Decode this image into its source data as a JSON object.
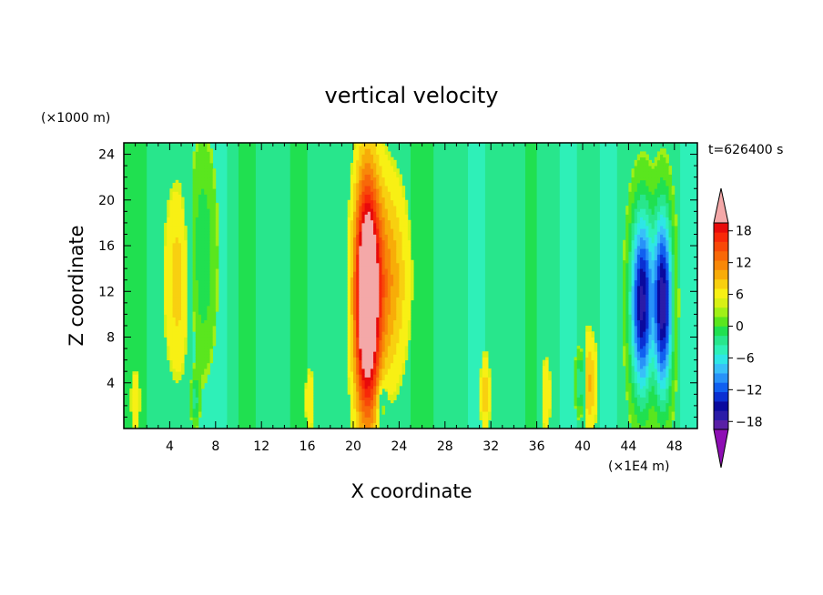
{
  "chart_data": {
    "type": "heatmap",
    "title": "vertical velocity",
    "xlabel": "X coordinate",
    "ylabel": "Z coordinate",
    "x_unit": "(×1E4 m)",
    "y_unit": "(×1000 m)",
    "time_label": "t=626400 s",
    "xlim": [
      0,
      50
    ],
    "ylim": [
      0,
      25
    ],
    "x_ticks": [
      4,
      8,
      12,
      16,
      20,
      24,
      28,
      32,
      36,
      40,
      44,
      48
    ],
    "y_ticks": [
      4,
      8,
      12,
      16,
      20,
      24
    ],
    "colorbar": {
      "levels": [
        -21,
        -19.5,
        -18,
        -16.5,
        -15,
        -13.5,
        -12,
        -10.5,
        -9,
        -7.5,
        -6,
        -4.5,
        -3,
        -1.5,
        0,
        1.5,
        3,
        4.5,
        6,
        7.5,
        9,
        10.5,
        12,
        13.5,
        15,
        16.5,
        18,
        19.5,
        21
      ],
      "labels": [
        18,
        12,
        6,
        0,
        -6,
        -12,
        -18
      ],
      "colors": [
        "#8e0eb4",
        "#5a1fa6",
        "#2b1ca8",
        "#0a0a9e",
        "#0a2fd2",
        "#1060f0",
        "#2892f8",
        "#38c0f8",
        "#2ee6e6",
        "#2ef0b8",
        "#28e68c",
        "#20e050",
        "#5ae61e",
        "#a0f016",
        "#d8f014",
        "#f8f014",
        "#f8d010",
        "#f8ac08",
        "#f88808",
        "#f86808",
        "#f84808",
        "#f82808",
        "#e80a0a",
        "#f4a8a8"
      ]
    },
    "features": [
      {
        "name": "updraft",
        "x": 21.2,
        "z": 12,
        "peak": 21
      },
      {
        "name": "downdraft",
        "x": 45.2,
        "z": 10,
        "peak": -17
      },
      {
        "name": "downdraft",
        "x": 47.0,
        "z": 10,
        "peak": -17
      },
      {
        "name": "weak downdraft",
        "x": 6.8,
        "z": 15,
        "peak": -4
      },
      {
        "name": "weak updraft",
        "x": 4.8,
        "z": 14,
        "peak": 4
      }
    ]
  }
}
